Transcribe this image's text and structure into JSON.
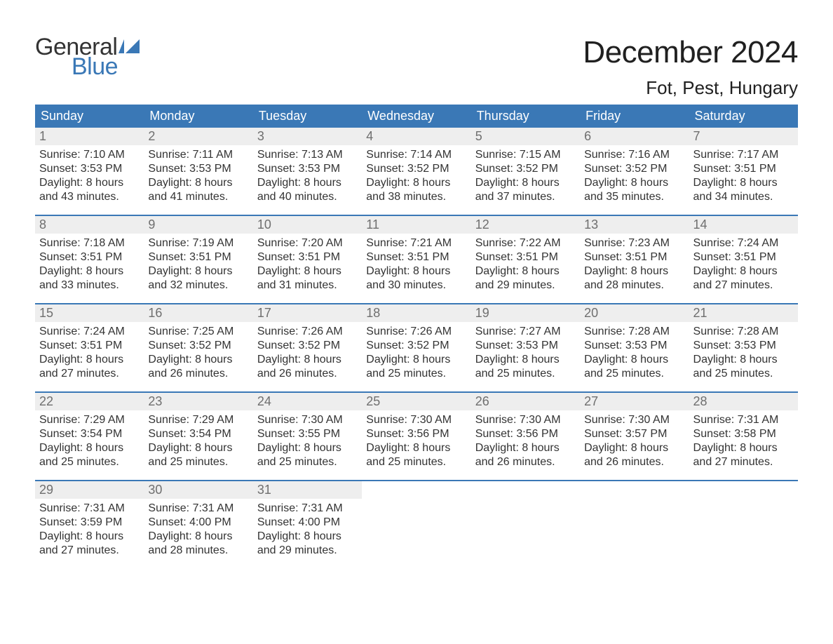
{
  "logo": {
    "word1": "General",
    "word2": "Blue",
    "flag_color": "#3a78b6"
  },
  "title": "December 2024",
  "location": "Fot, Pest, Hungary",
  "colors": {
    "header_bg": "#3a78b6",
    "header_text": "#ffffff",
    "daynum_bg": "#eeeeee",
    "daynum_text": "#6f6f6f",
    "body_text": "#333333",
    "week_divider": "#3a78b6"
  },
  "day_labels": [
    "Sunday",
    "Monday",
    "Tuesday",
    "Wednesday",
    "Thursday",
    "Friday",
    "Saturday"
  ],
  "weeks": [
    [
      {
        "n": "1",
        "sunrise": "7:10 AM",
        "sunset": "3:53 PM",
        "daylight_h": "8",
        "daylight_m": "43"
      },
      {
        "n": "2",
        "sunrise": "7:11 AM",
        "sunset": "3:53 PM",
        "daylight_h": "8",
        "daylight_m": "41"
      },
      {
        "n": "3",
        "sunrise": "7:13 AM",
        "sunset": "3:53 PM",
        "daylight_h": "8",
        "daylight_m": "40"
      },
      {
        "n": "4",
        "sunrise": "7:14 AM",
        "sunset": "3:52 PM",
        "daylight_h": "8",
        "daylight_m": "38"
      },
      {
        "n": "5",
        "sunrise": "7:15 AM",
        "sunset": "3:52 PM",
        "daylight_h": "8",
        "daylight_m": "37"
      },
      {
        "n": "6",
        "sunrise": "7:16 AM",
        "sunset": "3:52 PM",
        "daylight_h": "8",
        "daylight_m": "35"
      },
      {
        "n": "7",
        "sunrise": "7:17 AM",
        "sunset": "3:51 PM",
        "daylight_h": "8",
        "daylight_m": "34"
      }
    ],
    [
      {
        "n": "8",
        "sunrise": "7:18 AM",
        "sunset": "3:51 PM",
        "daylight_h": "8",
        "daylight_m": "33"
      },
      {
        "n": "9",
        "sunrise": "7:19 AM",
        "sunset": "3:51 PM",
        "daylight_h": "8",
        "daylight_m": "32"
      },
      {
        "n": "10",
        "sunrise": "7:20 AM",
        "sunset": "3:51 PM",
        "daylight_h": "8",
        "daylight_m": "31"
      },
      {
        "n": "11",
        "sunrise": "7:21 AM",
        "sunset": "3:51 PM",
        "daylight_h": "8",
        "daylight_m": "30"
      },
      {
        "n": "12",
        "sunrise": "7:22 AM",
        "sunset": "3:51 PM",
        "daylight_h": "8",
        "daylight_m": "29"
      },
      {
        "n": "13",
        "sunrise": "7:23 AM",
        "sunset": "3:51 PM",
        "daylight_h": "8",
        "daylight_m": "28"
      },
      {
        "n": "14",
        "sunrise": "7:24 AM",
        "sunset": "3:51 PM",
        "daylight_h": "8",
        "daylight_m": "27"
      }
    ],
    [
      {
        "n": "15",
        "sunrise": "7:24 AM",
        "sunset": "3:51 PM",
        "daylight_h": "8",
        "daylight_m": "27"
      },
      {
        "n": "16",
        "sunrise": "7:25 AM",
        "sunset": "3:52 PM",
        "daylight_h": "8",
        "daylight_m": "26"
      },
      {
        "n": "17",
        "sunrise": "7:26 AM",
        "sunset": "3:52 PM",
        "daylight_h": "8",
        "daylight_m": "26"
      },
      {
        "n": "18",
        "sunrise": "7:26 AM",
        "sunset": "3:52 PM",
        "daylight_h": "8",
        "daylight_m": "25"
      },
      {
        "n": "19",
        "sunrise": "7:27 AM",
        "sunset": "3:53 PM",
        "daylight_h": "8",
        "daylight_m": "25"
      },
      {
        "n": "20",
        "sunrise": "7:28 AM",
        "sunset": "3:53 PM",
        "daylight_h": "8",
        "daylight_m": "25"
      },
      {
        "n": "21",
        "sunrise": "7:28 AM",
        "sunset": "3:53 PM",
        "daylight_h": "8",
        "daylight_m": "25"
      }
    ],
    [
      {
        "n": "22",
        "sunrise": "7:29 AM",
        "sunset": "3:54 PM",
        "daylight_h": "8",
        "daylight_m": "25"
      },
      {
        "n": "23",
        "sunrise": "7:29 AM",
        "sunset": "3:54 PM",
        "daylight_h": "8",
        "daylight_m": "25"
      },
      {
        "n": "24",
        "sunrise": "7:30 AM",
        "sunset": "3:55 PM",
        "daylight_h": "8",
        "daylight_m": "25"
      },
      {
        "n": "25",
        "sunrise": "7:30 AM",
        "sunset": "3:56 PM",
        "daylight_h": "8",
        "daylight_m": "25"
      },
      {
        "n": "26",
        "sunrise": "7:30 AM",
        "sunset": "3:56 PM",
        "daylight_h": "8",
        "daylight_m": "26"
      },
      {
        "n": "27",
        "sunrise": "7:30 AM",
        "sunset": "3:57 PM",
        "daylight_h": "8",
        "daylight_m": "26"
      },
      {
        "n": "28",
        "sunrise": "7:31 AM",
        "sunset": "3:58 PM",
        "daylight_h": "8",
        "daylight_m": "27"
      }
    ],
    [
      {
        "n": "29",
        "sunrise": "7:31 AM",
        "sunset": "3:59 PM",
        "daylight_h": "8",
        "daylight_m": "27"
      },
      {
        "n": "30",
        "sunrise": "7:31 AM",
        "sunset": "4:00 PM",
        "daylight_h": "8",
        "daylight_m": "28"
      },
      {
        "n": "31",
        "sunrise": "7:31 AM",
        "sunset": "4:00 PM",
        "daylight_h": "8",
        "daylight_m": "29"
      },
      null,
      null,
      null,
      null
    ]
  ],
  "labels": {
    "sunrise_prefix": "Sunrise: ",
    "sunset_prefix": "Sunset: ",
    "daylight_prefix": "Daylight: ",
    "hours_word": " hours",
    "and_word": "and ",
    "minutes_word": " minutes."
  }
}
